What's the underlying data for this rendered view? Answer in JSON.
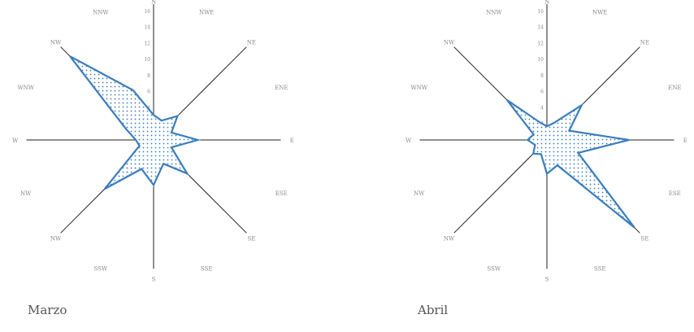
{
  "chart_data": [
    {
      "type": "radar",
      "caption": "Marzo",
      "directions": [
        "N",
        "NWE",
        "NE",
        "ENE",
        "E",
        "ESE",
        "SE",
        "SSE",
        "S",
        "SSW",
        "NW",
        "NW",
        "W",
        "WNW",
        "NW",
        "NNW"
      ],
      "values": [
        3.1,
        2.6,
        4.2,
        2.4,
        5.5,
        2.4,
        5.9,
        3.2,
        5.6,
        3.9,
        8.6,
        1.9,
        2.2,
        3.8,
        14.7,
        6.7
      ],
      "r_ticks": [
        2,
        4,
        6,
        8,
        10,
        12,
        14,
        16
      ],
      "r_max": 16,
      "fill_pattern": "dotted",
      "series_color": "#3a7dbf"
    },
    {
      "type": "radar",
      "caption": "Abril",
      "directions": [
        "N",
        "NWE",
        "NE",
        "ENE",
        "E",
        "ESE",
        "SE",
        "SSE",
        "S",
        "SSW",
        "NW",
        "NW",
        "W",
        "WNW",
        "NW",
        "NNW"
      ],
      "values": [
        1.7,
        2.3,
        6.1,
        3.0,
        10.2,
        4.2,
        15.4,
        3.4,
        4.2,
        1.9,
        2.4,
        1.6,
        2.4,
        1.8,
        7.0,
        2.4
      ],
      "r_ticks": [
        2,
        4,
        6,
        8,
        10,
        12,
        14,
        16
      ],
      "r_max": 16,
      "fill_pattern": "dotted",
      "series_color": "#3a7dbf"
    }
  ]
}
